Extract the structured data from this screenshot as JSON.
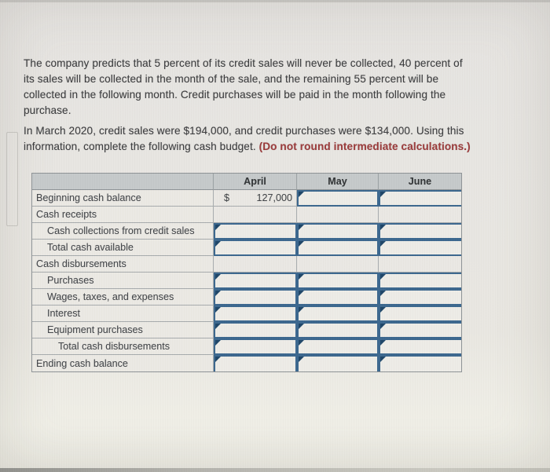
{
  "intro": {
    "p1": "The company predicts that 5 percent of its credit sales will never be collected, 40 percent of its sales will be collected in the month of the sale, and the remaining 55 percent will be collected in the following month. Credit purchases will be paid in the month following the purchase.",
    "p2_normal": "In March 2020, credit sales were $194,000, and credit purchases were $134,000. Using this information, complete the following cash budget. ",
    "p2_bold": "(Do not round intermediate calculations.)"
  },
  "colors": {
    "input_border": "#3a668e",
    "input_marker": "#1d4467",
    "header_bg": "#c5c9ca",
    "warning_text": "#9c3a3a"
  },
  "table": {
    "columns": [
      "April",
      "May",
      "June"
    ],
    "rows": [
      {
        "label": "Beginning cash balance",
        "indent": 0,
        "cells": [
          {
            "type": "static",
            "prefix": "$",
            "value": "127,000"
          },
          {
            "type": "input"
          },
          {
            "type": "input"
          }
        ]
      },
      {
        "label": "Cash receipts",
        "indent": 0,
        "cells": [
          {
            "type": "empty"
          },
          {
            "type": "empty"
          },
          {
            "type": "empty"
          }
        ]
      },
      {
        "label": "Cash collections from credit sales",
        "indent": 1,
        "cells": [
          {
            "type": "input"
          },
          {
            "type": "input"
          },
          {
            "type": "input"
          }
        ]
      },
      {
        "label": "Total cash available",
        "indent": 1,
        "cells": [
          {
            "type": "input"
          },
          {
            "type": "input"
          },
          {
            "type": "input"
          }
        ]
      },
      {
        "label": "Cash disbursements",
        "indent": 0,
        "cells": [
          {
            "type": "empty"
          },
          {
            "type": "empty"
          },
          {
            "type": "empty"
          }
        ]
      },
      {
        "label": "Purchases",
        "indent": 1,
        "cells": [
          {
            "type": "input"
          },
          {
            "type": "input"
          },
          {
            "type": "input"
          }
        ]
      },
      {
        "label": "Wages, taxes, and expenses",
        "indent": 1,
        "cells": [
          {
            "type": "input"
          },
          {
            "type": "input"
          },
          {
            "type": "input"
          }
        ]
      },
      {
        "label": "Interest",
        "indent": 1,
        "cells": [
          {
            "type": "input"
          },
          {
            "type": "input"
          },
          {
            "type": "input"
          }
        ]
      },
      {
        "label": "Equipment purchases",
        "indent": 1,
        "cells": [
          {
            "type": "input"
          },
          {
            "type": "input"
          },
          {
            "type": "input"
          }
        ]
      },
      {
        "label": "Total cash disbursements",
        "indent": 2,
        "cells": [
          {
            "type": "input"
          },
          {
            "type": "input"
          },
          {
            "type": "input"
          }
        ]
      },
      {
        "label": "Ending cash balance",
        "indent": 0,
        "cells": [
          {
            "type": "input"
          },
          {
            "type": "input"
          },
          {
            "type": "input"
          }
        ]
      }
    ]
  }
}
